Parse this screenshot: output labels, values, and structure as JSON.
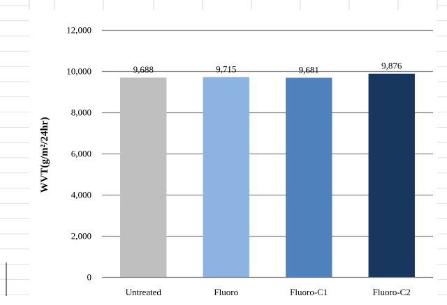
{
  "chart_data": {
    "type": "bar",
    "title": "",
    "xlabel": "",
    "ylabel": "WVT(g/m²/24hr)",
    "categories": [
      "Untreated",
      "Fluoro",
      "Fluoro-C1",
      "Fluoro-C2"
    ],
    "values": [
      9688,
      9715,
      9681,
      9876
    ],
    "data_labels": [
      "9,688",
      "9,715",
      "9,681",
      "9,876"
    ],
    "colors": [
      "#bfbfbf",
      "#8db3e2",
      "#4f81bd",
      "#17375e"
    ],
    "ylim": [
      0,
      12000
    ],
    "yticks": [
      0,
      2000,
      4000,
      6000,
      8000,
      10000,
      12000
    ],
    "ytick_labels": [
      "0",
      "2,000",
      "4,000",
      "6,000",
      "8,000",
      "10,000",
      "12,000"
    ],
    "grid": true,
    "legend": "none"
  }
}
